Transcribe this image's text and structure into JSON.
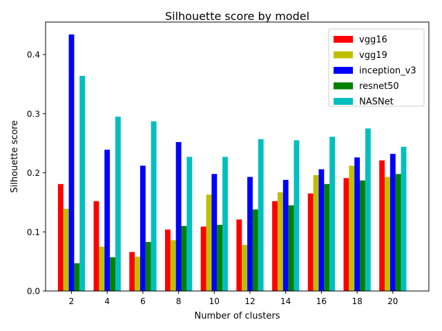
{
  "chart_data": {
    "type": "bar",
    "title": "Silhouette score by model",
    "xlabel": "Number of clusters",
    "ylabel": "Silhouette score",
    "categories": [
      "2",
      "4",
      "6",
      "8",
      "10",
      "12",
      "14",
      "16",
      "18",
      "20"
    ],
    "ylim": [
      0,
      0.455
    ],
    "yticks": [
      "0.0",
      "0.1",
      "0.2",
      "0.3",
      "0.4"
    ],
    "ytick_values": [
      0.0,
      0.1,
      0.2,
      0.3,
      0.4
    ],
    "grid": false,
    "legend_position": "top-right",
    "series": [
      {
        "name": "vgg16",
        "color": "#ff0000",
        "values": [
          0.181,
          0.152,
          0.066,
          0.104,
          0.109,
          0.121,
          0.152,
          0.165,
          0.191,
          0.221
        ]
      },
      {
        "name": "vgg19",
        "color": "#bfbf00",
        "values": [
          0.139,
          0.075,
          0.058,
          0.086,
          0.163,
          0.078,
          0.167,
          0.196,
          0.212,
          0.193
        ]
      },
      {
        "name": "inception_v3",
        "color": "#0000ff",
        "values": [
          0.434,
          0.239,
          0.212,
          0.252,
          0.198,
          0.193,
          0.188,
          0.206,
          0.226,
          0.232
        ]
      },
      {
        "name": "resnet50",
        "color": "#008000",
        "values": [
          0.047,
          0.057,
          0.083,
          0.11,
          0.112,
          0.138,
          0.145,
          0.181,
          0.187,
          0.198
        ]
      },
      {
        "name": "NASNet",
        "color": "#00bfbf",
        "values": [
          0.364,
          0.295,
          0.287,
          0.227,
          0.227,
          0.257,
          0.255,
          0.261,
          0.275,
          0.244
        ]
      }
    ]
  }
}
